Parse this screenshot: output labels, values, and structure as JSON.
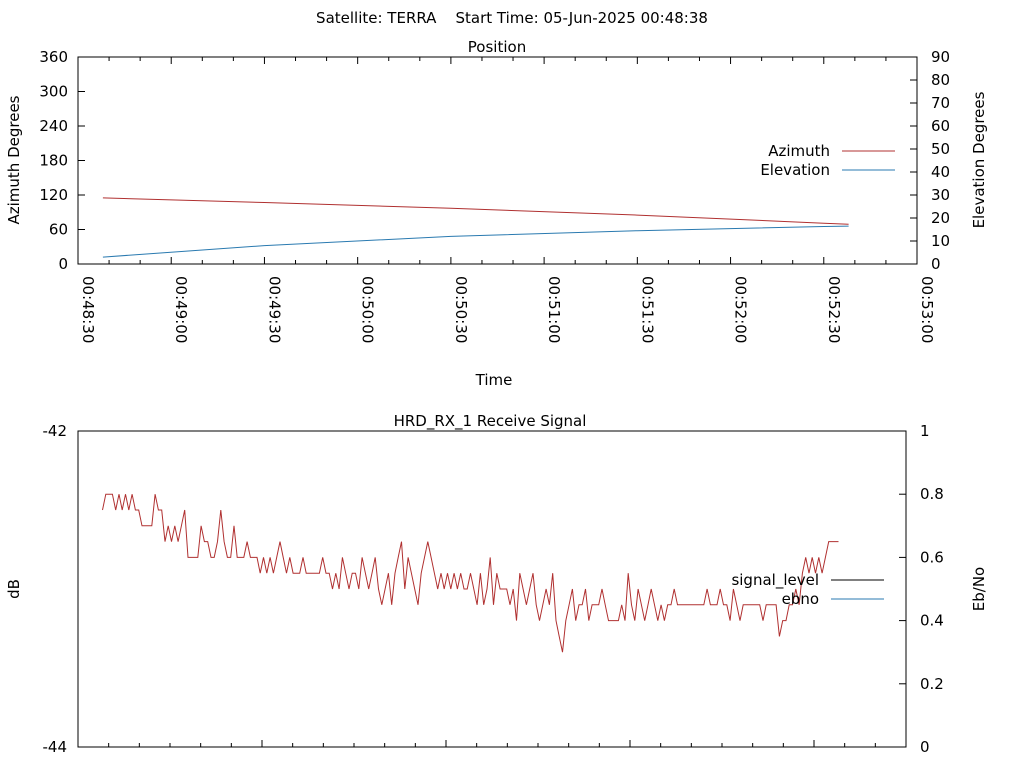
{
  "page_title": "Satellite: TERRA    Start Time: 05-Jun-2025 00:48:38",
  "colors": {
    "azimuth": "#b03030",
    "elevation": "#2a7ab0",
    "signal_level": "#000000",
    "ebno": "#2a7ab0",
    "grid": "#000000"
  },
  "chart_data": [
    {
      "type": "line",
      "title": "Position",
      "xlabel": "Time",
      "ylabel": "Azimuth Degrees",
      "y2label": "Elevation Degrees",
      "x_ticks": [
        "00:48:30",
        "00:49:00",
        "00:49:30",
        "00:50:00",
        "00:50:30",
        "00:51:00",
        "00:51:30",
        "00:52:00",
        "00:52:30",
        "00:53:00"
      ],
      "xlim": [
        "00:48:30",
        "00:53:00"
      ],
      "ylim": [
        0,
        360
      ],
      "y_ticks": [
        0,
        60,
        120,
        180,
        240,
        300,
        360
      ],
      "y2lim": [
        0,
        90
      ],
      "y2_ticks": [
        0,
        10,
        20,
        30,
        40,
        50,
        60,
        70,
        80,
        90
      ],
      "legend_position": "right",
      "series": [
        {
          "name": "Azimuth",
          "axis": "y1",
          "x": [
            "00:48:38",
            "00:49:30",
            "00:50:30",
            "00:51:30",
            "00:52:30",
            "00:52:38"
          ],
          "values": [
            115,
            107,
            97,
            85,
            71,
            69
          ]
        },
        {
          "name": "Elevation",
          "axis": "y2",
          "x": [
            "00:48:38",
            "00:49:30",
            "00:50:30",
            "00:51:30",
            "00:52:30",
            "00:52:38"
          ],
          "values": [
            3,
            8,
            12,
            14.5,
            16.3,
            16.5
          ]
        }
      ]
    },
    {
      "type": "line",
      "title": "HRD_RX_1 Receive Signal",
      "xlabel": "",
      "ylabel": "dB",
      "y2label": "Eb/No",
      "ylim": [
        -44,
        -42
      ],
      "y_ticks": [
        -44,
        -42
      ],
      "y2lim": [
        0,
        1
      ],
      "y2_ticks": [
        0,
        0.2,
        0.4,
        0.6,
        0.8,
        1
      ],
      "x_range": [
        "00:48:38",
        "00:52:38"
      ],
      "legend_position": "right",
      "series": [
        {
          "name": "signal_level",
          "axis": "y1",
          "values": []
        },
        {
          "name": "ebno",
          "axis": "y2",
          "values": [
            0.75,
            0.8,
            0.8,
            0.8,
            0.75,
            0.8,
            0.75,
            0.8,
            0.75,
            0.8,
            0.75,
            0.75,
            0.7,
            0.7,
            0.7,
            0.7,
            0.8,
            0.75,
            0.75,
            0.65,
            0.7,
            0.65,
            0.7,
            0.65,
            0.7,
            0.75,
            0.6,
            0.6,
            0.6,
            0.6,
            0.7,
            0.65,
            0.65,
            0.6,
            0.6,
            0.65,
            0.75,
            0.65,
            0.6,
            0.6,
            0.7,
            0.6,
            0.6,
            0.6,
            0.65,
            0.6,
            0.6,
            0.6,
            0.55,
            0.6,
            0.55,
            0.6,
            0.55,
            0.6,
            0.65,
            0.6,
            0.55,
            0.6,
            0.55,
            0.55,
            0.55,
            0.6,
            0.55,
            0.55,
            0.55,
            0.55,
            0.55,
            0.6,
            0.55,
            0.55,
            0.5,
            0.55,
            0.5,
            0.6,
            0.55,
            0.5,
            0.55,
            0.55,
            0.5,
            0.6,
            0.55,
            0.5,
            0.55,
            0.6,
            0.5,
            0.45,
            0.5,
            0.55,
            0.45,
            0.55,
            0.6,
            0.65,
            0.5,
            0.6,
            0.55,
            0.5,
            0.45,
            0.55,
            0.6,
            0.65,
            0.6,
            0.55,
            0.5,
            0.55,
            0.5,
            0.55,
            0.5,
            0.55,
            0.5,
            0.55,
            0.5,
            0.5,
            0.55,
            0.5,
            0.45,
            0.55,
            0.45,
            0.5,
            0.6,
            0.45,
            0.55,
            0.5,
            0.5,
            0.5,
            0.45,
            0.5,
            0.4,
            0.55,
            0.5,
            0.45,
            0.5,
            0.55,
            0.45,
            0.4,
            0.45,
            0.5,
            0.45,
            0.55,
            0.4,
            0.35,
            0.3,
            0.4,
            0.45,
            0.5,
            0.4,
            0.45,
            0.45,
            0.5,
            0.4,
            0.45,
            0.45,
            0.45,
            0.5,
            0.45,
            0.4,
            0.4,
            0.4,
            0.4,
            0.45,
            0.4,
            0.55,
            0.45,
            0.4,
            0.5,
            0.45,
            0.4,
            0.45,
            0.5,
            0.45,
            0.4,
            0.45,
            0.4,
            0.45,
            0.45,
            0.5,
            0.45,
            0.45,
            0.45,
            0.45,
            0.45,
            0.45,
            0.45,
            0.45,
            0.45,
            0.5,
            0.45,
            0.45,
            0.45,
            0.5,
            0.45,
            0.45,
            0.4,
            0.5,
            0.45,
            0.4,
            0.45,
            0.45,
            0.45,
            0.45,
            0.45,
            0.45,
            0.4,
            0.45,
            0.45,
            0.45,
            0.45,
            0.35,
            0.4,
            0.4,
            0.45,
            0.45,
            0.5,
            0.45,
            0.55,
            0.6,
            0.55,
            0.6,
            0.55,
            0.6,
            0.55,
            0.6,
            0.65,
            0.65,
            0.65,
            0.65
          ]
        }
      ]
    }
  ]
}
